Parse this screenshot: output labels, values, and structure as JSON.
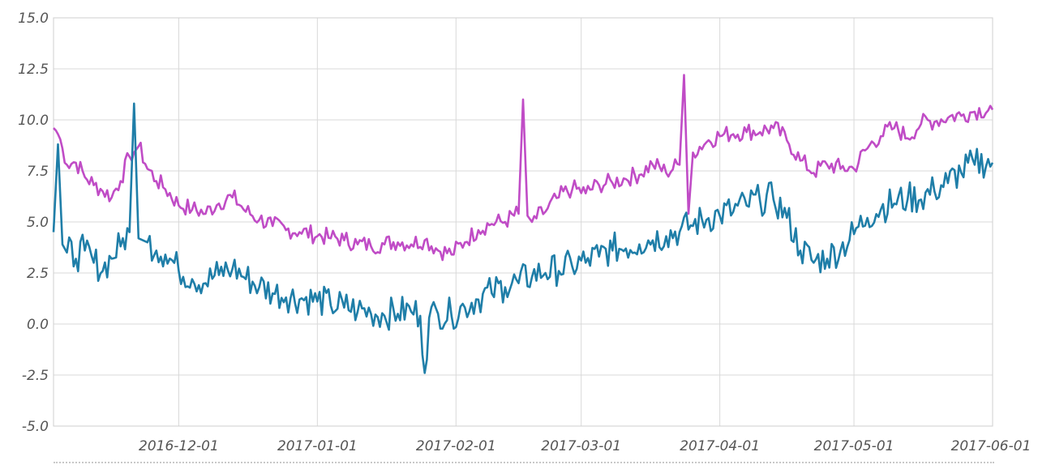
{
  "chart_data": {
    "type": "line",
    "title": "",
    "xlabel": "",
    "ylabel": "",
    "x_range": [
      "2016-11-03",
      "2017-06-01"
    ],
    "ylim": [
      -5.0,
      15.0
    ],
    "y_ticks": [
      "15.0",
      "12.5",
      "10.0",
      "7.5",
      "5.0",
      "2.5",
      "0.0",
      "-2.5",
      "-5.0"
    ],
    "x_ticks": [
      {
        "date": "2016-12-01",
        "label": "2016-12-01"
      },
      {
        "date": "2017-01-01",
        "label": "2017-01-01"
      },
      {
        "date": "2017-02-01",
        "label": "2017-02-01"
      },
      {
        "date": "2017-03-01",
        "label": "2017-03-01"
      },
      {
        "date": "2017-04-01",
        "label": "2017-04-01"
      },
      {
        "date": "2017-05-01",
        "label": "2017-05-01"
      },
      {
        "date": "2017-06-01",
        "label": "2017-06-01"
      }
    ],
    "grid": true,
    "legend": "none",
    "series": [
      {
        "color": "#c04cc6",
        "x": [
          "2016-11-03",
          "2016-11-04",
          "2016-11-05",
          "2016-11-06",
          "2016-11-08",
          "2016-11-10",
          "2016-11-12",
          "2016-11-14",
          "2016-11-16",
          "2016-11-18",
          "2016-11-20",
          "2016-11-21",
          "2016-11-22",
          "2016-11-24",
          "2016-11-26",
          "2016-11-28",
          "2016-12-01",
          "2016-12-04",
          "2016-12-07",
          "2016-12-10",
          "2016-12-13",
          "2016-12-16",
          "2016-12-19",
          "2016-12-22",
          "2016-12-25",
          "2016-12-28",
          "2017-01-01",
          "2017-01-04",
          "2017-01-07",
          "2017-01-10",
          "2017-01-13",
          "2017-01-16",
          "2017-01-19",
          "2017-01-22",
          "2017-01-25",
          "2017-01-28",
          "2017-01-31",
          "2017-02-03",
          "2017-02-06",
          "2017-02-09",
          "2017-02-12",
          "2017-02-15",
          "2017-02-16",
          "2017-02-17",
          "2017-02-18",
          "2017-02-21",
          "2017-02-24",
          "2017-02-27",
          "2017-03-02",
          "2017-03-05",
          "2017-03-08",
          "2017-03-11",
          "2017-03-14",
          "2017-03-17",
          "2017-03-20",
          "2017-03-23",
          "2017-03-24",
          "2017-03-25",
          "2017-03-26",
          "2017-03-29",
          "2017-04-01",
          "2017-04-04",
          "2017-04-07",
          "2017-04-10",
          "2017-04-13",
          "2017-04-16",
          "2017-04-19",
          "2017-04-22",
          "2017-04-25",
          "2017-04-28",
          "2017-05-01",
          "2017-05-04",
          "2017-05-07",
          "2017-05-10",
          "2017-05-13",
          "2017-05-16",
          "2017-05-19",
          "2017-05-22",
          "2017-05-25",
          "2017-05-28",
          "2017-06-01"
        ],
        "y": [
          9.6,
          9.3,
          8.6,
          7.8,
          7.9,
          7.2,
          6.8,
          6.5,
          6.2,
          7.0,
          8.2,
          8.4,
          8.7,
          7.6,
          7.0,
          6.6,
          5.8,
          5.6,
          5.4,
          5.9,
          6.2,
          5.5,
          5.1,
          4.8,
          4.6,
          4.5,
          4.3,
          4.2,
          4.1,
          3.9,
          3.8,
          3.9,
          4.0,
          3.9,
          4.1,
          3.6,
          3.4,
          4.0,
          4.6,
          4.9,
          5.0,
          5.4,
          11.0,
          5.3,
          5.0,
          5.5,
          6.2,
          6.6,
          6.4,
          6.8,
          6.9,
          7.1,
          7.3,
          7.8,
          7.4,
          7.8,
          12.2,
          5.4,
          8.4,
          8.9,
          9.2,
          9.3,
          9.4,
          9.4,
          9.6,
          9.0,
          8.0,
          7.4,
          7.8,
          7.6,
          7.6,
          8.6,
          9.2,
          9.6,
          9.1,
          9.8,
          9.9,
          10.1,
          10.2,
          10.4,
          10.5
        ]
      },
      {
        "color": "#1f7ea8",
        "x": [
          "2016-11-03",
          "2016-11-04",
          "2016-11-05",
          "2016-11-06",
          "2016-11-08",
          "2016-11-10",
          "2016-11-12",
          "2016-11-14",
          "2016-11-16",
          "2016-11-18",
          "2016-11-20",
          "2016-11-21",
          "2016-11-22",
          "2016-11-24",
          "2016-11-26",
          "2016-11-28",
          "2016-12-01",
          "2016-12-04",
          "2016-12-07",
          "2016-12-10",
          "2016-12-13",
          "2016-12-16",
          "2016-12-19",
          "2016-12-22",
          "2016-12-25",
          "2016-12-28",
          "2017-01-01",
          "2017-01-04",
          "2017-01-07",
          "2017-01-10",
          "2017-01-13",
          "2017-01-16",
          "2017-01-19",
          "2017-01-22",
          "2017-01-24",
          "2017-01-25",
          "2017-01-26",
          "2017-01-28",
          "2017-01-31",
          "2017-02-03",
          "2017-02-06",
          "2017-02-09",
          "2017-02-12",
          "2017-02-15",
          "2017-02-18",
          "2017-02-21",
          "2017-02-24",
          "2017-02-27",
          "2017-03-02",
          "2017-03-05",
          "2017-03-08",
          "2017-03-11",
          "2017-03-14",
          "2017-03-17",
          "2017-03-20",
          "2017-03-23",
          "2017-03-26",
          "2017-03-29",
          "2017-04-01",
          "2017-04-04",
          "2017-04-07",
          "2017-04-10",
          "2017-04-13",
          "2017-04-16",
          "2017-04-19",
          "2017-04-22",
          "2017-04-25",
          "2017-04-28",
          "2017-05-01",
          "2017-05-04",
          "2017-05-07",
          "2017-05-10",
          "2017-05-13",
          "2017-05-16",
          "2017-05-19",
          "2017-05-22",
          "2017-05-25",
          "2017-05-28",
          "2017-06-01"
        ],
        "y": [
          4.5,
          8.8,
          3.9,
          3.5,
          3.2,
          3.6,
          3.0,
          2.6,
          3.2,
          3.8,
          4.5,
          10.8,
          4.2,
          4.0,
          3.6,
          3.4,
          2.6,
          2.2,
          2.0,
          2.4,
          2.7,
          2.2,
          1.8,
          1.5,
          1.3,
          1.2,
          1.1,
          0.9,
          0.8,
          0.6,
          0.5,
          0.4,
          0.5,
          0.6,
          0.4,
          -2.4,
          0.3,
          0.5,
          0.4,
          0.8,
          1.2,
          1.5,
          1.8,
          2.0,
          2.3,
          2.5,
          2.6,
          2.8,
          3.0,
          3.3,
          3.6,
          3.7,
          3.9,
          4.1,
          4.3,
          4.5,
          4.8,
          5.1,
          5.3,
          5.5,
          5.8,
          6.0,
          6.1,
          5.2,
          3.6,
          3.0,
          3.2,
          3.6,
          4.4,
          5.2,
          5.6,
          5.9,
          6.1,
          6.1,
          6.5,
          6.9,
          7.4,
          7.8,
          7.9
        ]
      }
    ]
  }
}
